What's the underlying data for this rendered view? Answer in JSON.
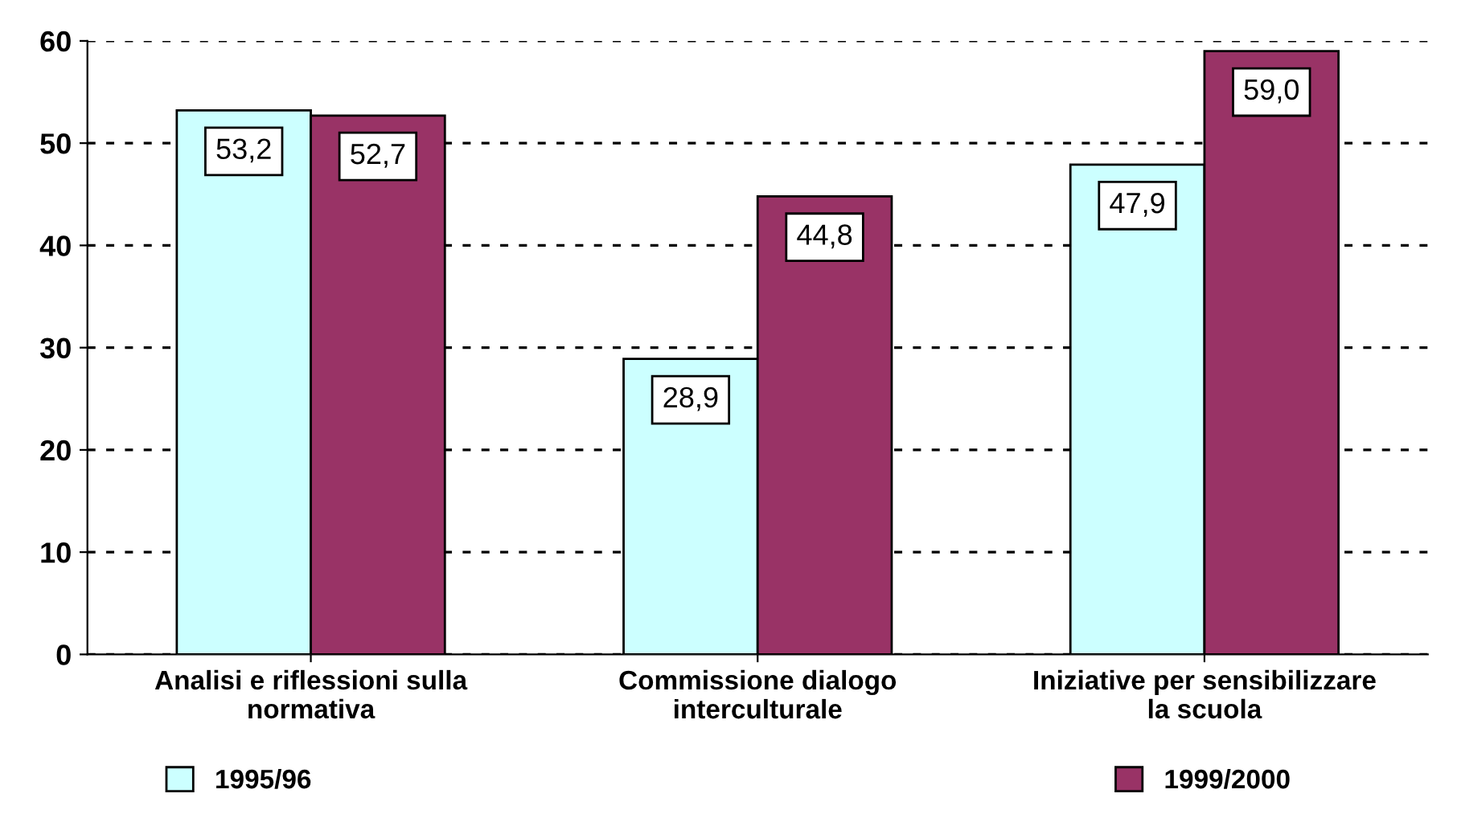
{
  "chart_data": {
    "type": "bar",
    "categories": [
      "Analisi e riflessioni sulla normativa",
      "Commissione dialogo interculturale",
      "Iniziative per sensibilizzare la scuola"
    ],
    "series": [
      {
        "name": "1995/96",
        "color": "#ccffff",
        "values": [
          53.2,
          28.9,
          47.9
        ],
        "value_labels": [
          "53,2",
          "28,9",
          "47,9"
        ]
      },
      {
        "name": "1999/2000",
        "color": "#993366",
        "values": [
          52.7,
          44.8,
          59.0
        ],
        "value_labels": [
          "52,7",
          "44,8",
          "59,0"
        ]
      }
    ],
    "ylim": [
      0,
      60
    ],
    "yticks": [
      0,
      10,
      20,
      30,
      40,
      50,
      60
    ],
    "grid": "y",
    "legend": "bottom"
  }
}
